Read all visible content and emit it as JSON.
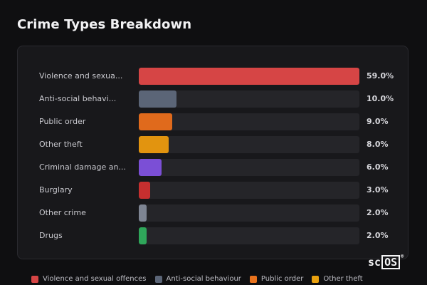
{
  "title": "Crime Types Breakdown",
  "chart_data": {
    "type": "bar",
    "orientation": "horizontal",
    "title": "Crime Types Breakdown",
    "categories": [
      "Violence and sexua...",
      "Anti-social behavi...",
      "Public order",
      "Other theft",
      "Criminal damage an...",
      "Burglary",
      "Other crime",
      "Drugs"
    ],
    "values": [
      59.0,
      10.0,
      9.0,
      8.0,
      6.0,
      3.0,
      2.0,
      2.0
    ],
    "value_labels": [
      "59.0%",
      "10.0%",
      "9.0%",
      "8.0%",
      "6.0%",
      "3.0%",
      "2.0%",
      "2.0%"
    ],
    "colors": [
      "#d64545",
      "#5b6577",
      "#e06a1c",
      "#e2940f",
      "#7b4fd6",
      "#c62f2f",
      "#7e8593",
      "#2fa65a"
    ],
    "xlim": [
      0,
      59
    ],
    "grid": false
  },
  "legend": [
    {
      "label": "Violence and sexual offences",
      "color": "#d64545"
    },
    {
      "label": "Anti-social behaviour",
      "color": "#5b6577"
    },
    {
      "label": "Public order",
      "color": "#e8721d"
    },
    {
      "label": "Other theft",
      "color": "#e9a10f"
    }
  ],
  "logo": {
    "left": "sc",
    "box": "OS",
    "reg": "®"
  }
}
